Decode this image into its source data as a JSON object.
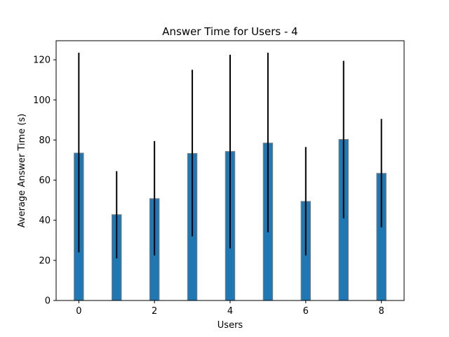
{
  "chart_data": {
    "type": "bar",
    "title": "Answer Time for Users - 4",
    "xlabel": "Users",
    "ylabel": "Average Answer Time (s)",
    "x": [
      0,
      1,
      2,
      3,
      4,
      5,
      6,
      7,
      8
    ],
    "values": [
      73.5,
      42.8,
      50.8,
      73.3,
      74.3,
      78.5,
      49.4,
      80.3,
      63.4
    ],
    "error_low": [
      24,
      21,
      22.5,
      32,
      26,
      34,
      22.5,
      41,
      36.5
    ],
    "error_high": [
      123.5,
      64.5,
      79.5,
      115,
      122.5,
      123.5,
      76.5,
      119.5,
      90.5
    ],
    "xlim": [
      -0.6,
      8.6
    ],
    "ylim": [
      0,
      129.5
    ],
    "xticks": [
      0,
      2,
      4,
      6,
      8
    ],
    "yticks": [
      0,
      20,
      40,
      60,
      80,
      100,
      120
    ],
    "bar_color": "#1f77b4",
    "bar_edge_color": "#808080",
    "error_color": "#000000",
    "grid": false,
    "legend": "none"
  }
}
